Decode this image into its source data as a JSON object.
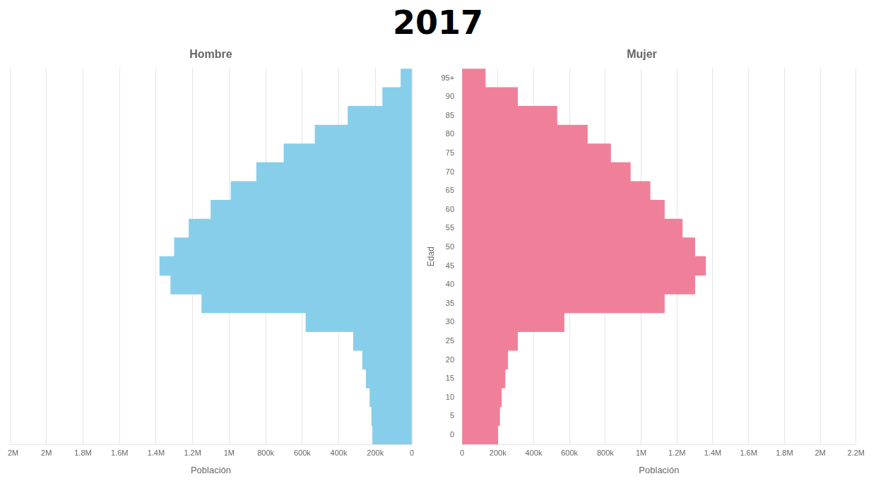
{
  "chart_data": {
    "type": "bar",
    "orientation": "horizontal",
    "title": "2017",
    "x_label": "Población",
    "y_label": "Edad",
    "categories": [
      "0",
      "5",
      "10",
      "15",
      "20",
      "25",
      "30",
      "35",
      "40",
      "45",
      "50",
      "55",
      "60",
      "65",
      "70",
      "75",
      "80",
      "85",
      "90",
      "95+"
    ],
    "series": [
      {
        "name": "Hombre",
        "color": "#87CEEB",
        "values": [
          215000,
          220000,
          230000,
          250000,
          270000,
          320000,
          580000,
          1150000,
          1320000,
          1380000,
          1300000,
          1220000,
          1100000,
          990000,
          850000,
          700000,
          530000,
          350000,
          160000,
          60000
        ]
      },
      {
        "name": "Mujer",
        "color": "#F08099",
        "values": [
          200000,
          210000,
          220000,
          240000,
          255000,
          310000,
          570000,
          1130000,
          1300000,
          1360000,
          1300000,
          1230000,
          1130000,
          1050000,
          940000,
          830000,
          700000,
          530000,
          310000,
          130000
        ]
      }
    ],
    "xlim": [
      0,
      2200000
    ],
    "xticks": [
      0,
      {
        "value": 200000,
        "label": "200k"
      },
      {
        "value": 400000,
        "label": "400k"
      },
      {
        "value": 600000,
        "label": "600k"
      },
      {
        "value": 800000,
        "label": "800k"
      },
      {
        "value": 1000000,
        "label": "1M"
      },
      {
        "value": 1200000,
        "label": "1.2M"
      },
      {
        "value": 1400000,
        "label": "1.4M"
      },
      {
        "value": 1600000,
        "label": "1.6M"
      },
      {
        "value": 1800000,
        "label": "1.8M"
      },
      {
        "value": 2000000,
        "label": "2M"
      },
      {
        "value": 2200000,
        "label": "2.2M"
      }
    ],
    "grid": true
  }
}
